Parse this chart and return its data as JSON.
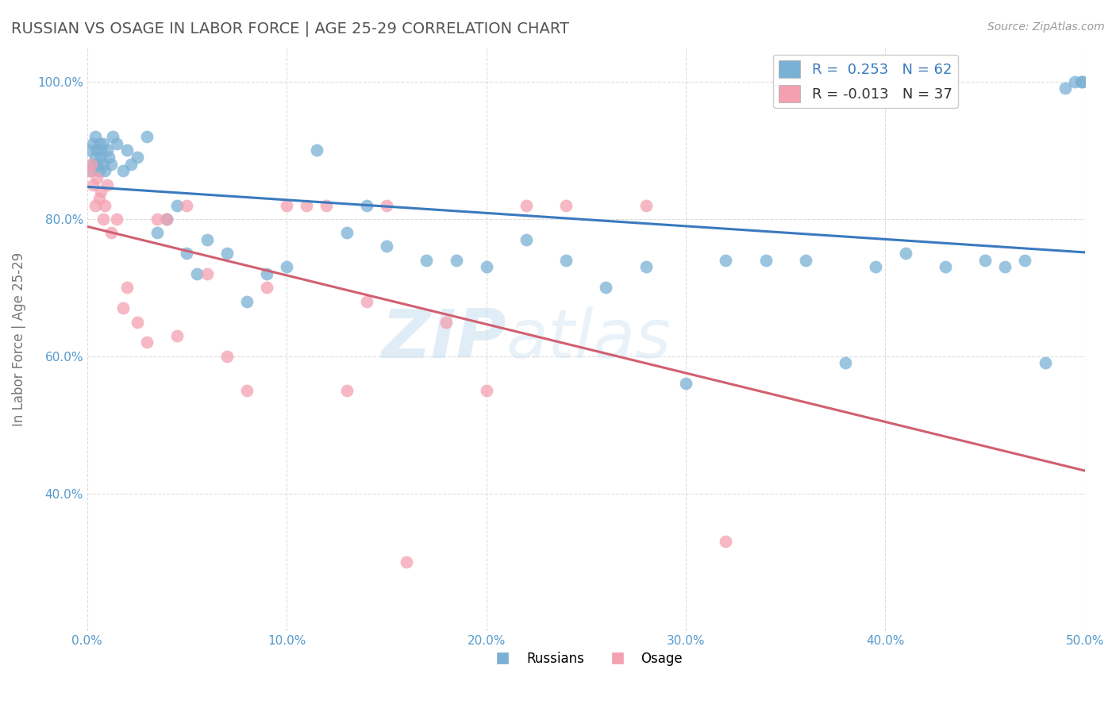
{
  "title": "RUSSIAN VS OSAGE IN LABOR FORCE | AGE 25-29 CORRELATION CHART",
  "source_text": "Source: ZipAtlas.com",
  "ylabel": "In Labor Force | Age 25-29",
  "xlim": [
    0.0,
    0.5
  ],
  "ylim": [
    0.2,
    1.05
  ],
  "yticks": [
    0.4,
    0.6,
    0.8,
    1.0
  ],
  "ytick_labels": [
    "40.0%",
    "60.0%",
    "80.0%",
    "100.0%"
  ],
  "xticks": [
    0.0,
    0.1,
    0.2,
    0.3,
    0.4,
    0.5
  ],
  "xtick_labels": [
    "0.0%",
    "10.0%",
    "20.0%",
    "30.0%",
    "40.0%",
    "50.0%"
  ],
  "watermark_zip": "ZIP",
  "watermark_atlas": "atlas",
  "russians_R": 0.253,
  "osage_R": -0.013,
  "russians_N": 62,
  "osage_N": 37,
  "blue_color": "#7ab0d4",
  "pink_color": "#f4a0b0",
  "blue_line_color": "#3a7abf",
  "pink_line_color": "#d06070",
  "title_color": "#555555",
  "axis_label_color": "#777777",
  "tick_color": "#5599cc",
  "grid_color": "#dddddd",
  "russians_x": [
    0.001,
    0.002,
    0.003,
    0.003,
    0.004,
    0.004,
    0.005,
    0.005,
    0.006,
    0.006,
    0.007,
    0.007,
    0.008,
    0.008,
    0.009,
    0.01,
    0.011,
    0.012,
    0.013,
    0.015,
    0.018,
    0.02,
    0.022,
    0.025,
    0.03,
    0.035,
    0.04,
    0.045,
    0.05,
    0.055,
    0.06,
    0.07,
    0.08,
    0.09,
    0.1,
    0.115,
    0.13,
    0.14,
    0.15,
    0.17,
    0.185,
    0.2,
    0.22,
    0.24,
    0.26,
    0.28,
    0.3,
    0.32,
    0.34,
    0.36,
    0.38,
    0.395,
    0.41,
    0.43,
    0.45,
    0.46,
    0.47,
    0.48,
    0.49,
    0.495,
    0.498,
    0.499
  ],
  "russians_y": [
    0.9,
    0.87,
    0.88,
    0.91,
    0.89,
    0.92,
    0.88,
    0.9,
    0.87,
    0.91,
    0.89,
    0.9,
    0.88,
    0.91,
    0.87,
    0.9,
    0.89,
    0.88,
    0.92,
    0.91,
    0.87,
    0.9,
    0.88,
    0.89,
    0.92,
    0.78,
    0.8,
    0.82,
    0.75,
    0.72,
    0.77,
    0.75,
    0.68,
    0.72,
    0.73,
    0.9,
    0.78,
    0.82,
    0.76,
    0.74,
    0.74,
    0.73,
    0.77,
    0.74,
    0.7,
    0.73,
    0.56,
    0.74,
    0.74,
    0.74,
    0.59,
    0.73,
    0.75,
    0.73,
    0.74,
    0.73,
    0.74,
    0.59,
    0.99,
    1.0,
    1.0,
    1.0
  ],
  "osage_x": [
    0.001,
    0.002,
    0.003,
    0.004,
    0.005,
    0.006,
    0.007,
    0.008,
    0.009,
    0.01,
    0.012,
    0.015,
    0.018,
    0.02,
    0.025,
    0.03,
    0.035,
    0.04,
    0.045,
    0.05,
    0.06,
    0.07,
    0.08,
    0.09,
    0.1,
    0.11,
    0.12,
    0.13,
    0.14,
    0.15,
    0.16,
    0.18,
    0.2,
    0.22,
    0.24,
    0.28,
    0.32
  ],
  "osage_y": [
    0.87,
    0.88,
    0.85,
    0.82,
    0.86,
    0.83,
    0.84,
    0.8,
    0.82,
    0.85,
    0.78,
    0.8,
    0.67,
    0.7,
    0.65,
    0.62,
    0.8,
    0.8,
    0.63,
    0.82,
    0.72,
    0.6,
    0.55,
    0.7,
    0.82,
    0.82,
    0.82,
    0.55,
    0.68,
    0.82,
    0.3,
    0.65,
    0.55,
    0.82,
    0.82,
    0.82,
    0.33
  ]
}
